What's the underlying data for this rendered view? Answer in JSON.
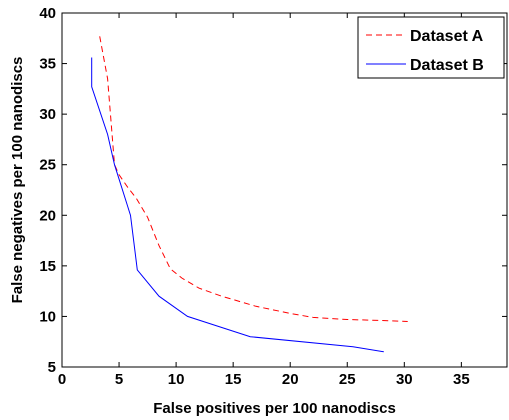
{
  "chart_data": {
    "type": "line",
    "title": "",
    "xlabel": "False positives per 100 nanodiscs",
    "ylabel": "False negatives per 100 nanodiscs",
    "xlim": [
      0,
      39
    ],
    "ylim": [
      5,
      40
    ],
    "xticks": [
      0,
      5,
      10,
      15,
      20,
      25,
      30,
      35
    ],
    "yticks": [
      5,
      10,
      15,
      20,
      25,
      30,
      35,
      40
    ],
    "grid": false,
    "legend_position": "top-right",
    "series": [
      {
        "name": "Dataset A",
        "color": "#ff0000",
        "line_style": "dashed",
        "x": [
          3.3,
          4.0,
          4.6,
          5.0,
          5.8,
          6.5,
          7.5,
          8.5,
          9.5,
          10.5,
          12.0,
          14.0,
          17.0,
          20.0,
          22.0,
          25.0,
          28.0,
          30.3
        ],
        "y": [
          37.7,
          33.5,
          25.0,
          24.0,
          22.7,
          21.7,
          19.8,
          17.0,
          14.7,
          13.8,
          12.8,
          12.0,
          11.0,
          10.3,
          9.9,
          9.7,
          9.6,
          9.5
        ]
      },
      {
        "name": "Dataset B",
        "color": "#0000ff",
        "line_style": "solid",
        "x": [
          2.6,
          2.6,
          4.0,
          4.6,
          6.0,
          6.6,
          8.5,
          11.0,
          16.5,
          25.5,
          28.2
        ],
        "y": [
          35.6,
          32.7,
          28.0,
          25.0,
          20.0,
          14.6,
          12.0,
          10.0,
          8.0,
          7.0,
          6.5
        ]
      }
    ]
  }
}
